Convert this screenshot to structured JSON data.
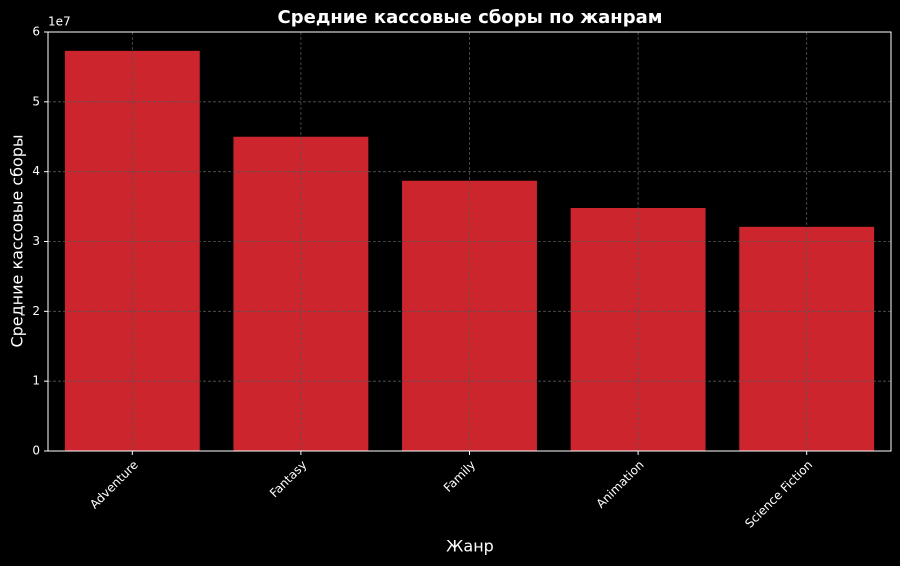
{
  "chart_data": {
    "type": "bar",
    "title": "Средние кассовые сборы по жанрам",
    "x_label": "Жанр",
    "y_label": "Средние кассовые сборы",
    "y_offset_label": "1e7",
    "categories": [
      "Adventure",
      "Fantasy",
      "Family",
      "Animation",
      "Science Fiction"
    ],
    "values": [
      5.73,
      4.5,
      3.87,
      3.48,
      3.21
    ],
    "color": "#cc252d",
    "ylim": [
      0,
      6
    ],
    "yticks": [
      0,
      1,
      2,
      3,
      4,
      5,
      6
    ],
    "grid": true
  }
}
